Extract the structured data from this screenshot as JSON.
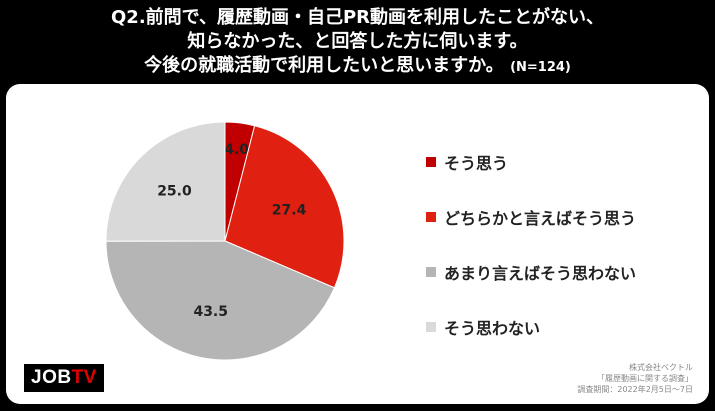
{
  "title": {
    "line1": "Q2.前問で、履歴動画・自己PR動画を利用したことがない、",
    "line2": "知らなかった、と回答した方に伺います。",
    "line3": "今後の就職活動で利用したいと思いますか。",
    "n_label": "(N=124)"
  },
  "chart_data": {
    "type": "pie",
    "categories": [
      "そう思う",
      "どちらかと言えばそう思う",
      "あまり言えばそう思わない",
      "そう思わない"
    ],
    "values": [
      4.0,
      27.4,
      43.5,
      25.0
    ],
    "value_labels": [
      "4.0",
      "27.4",
      "43.5",
      "25.0"
    ],
    "colors": [
      "#c00000",
      "#e02010",
      "#b5b5b5",
      "#d9d9d9"
    ],
    "start_angle": "12 o'clock",
    "direction": "clockwise",
    "legend_position": "right"
  },
  "logo": {
    "part1": "JOB",
    "part2": "TV"
  },
  "source": {
    "line1": "株式会社ベクトル",
    "line2": "「履歴動画に関する調査」",
    "line3": "調査期間：2022年2月5日～7日"
  }
}
